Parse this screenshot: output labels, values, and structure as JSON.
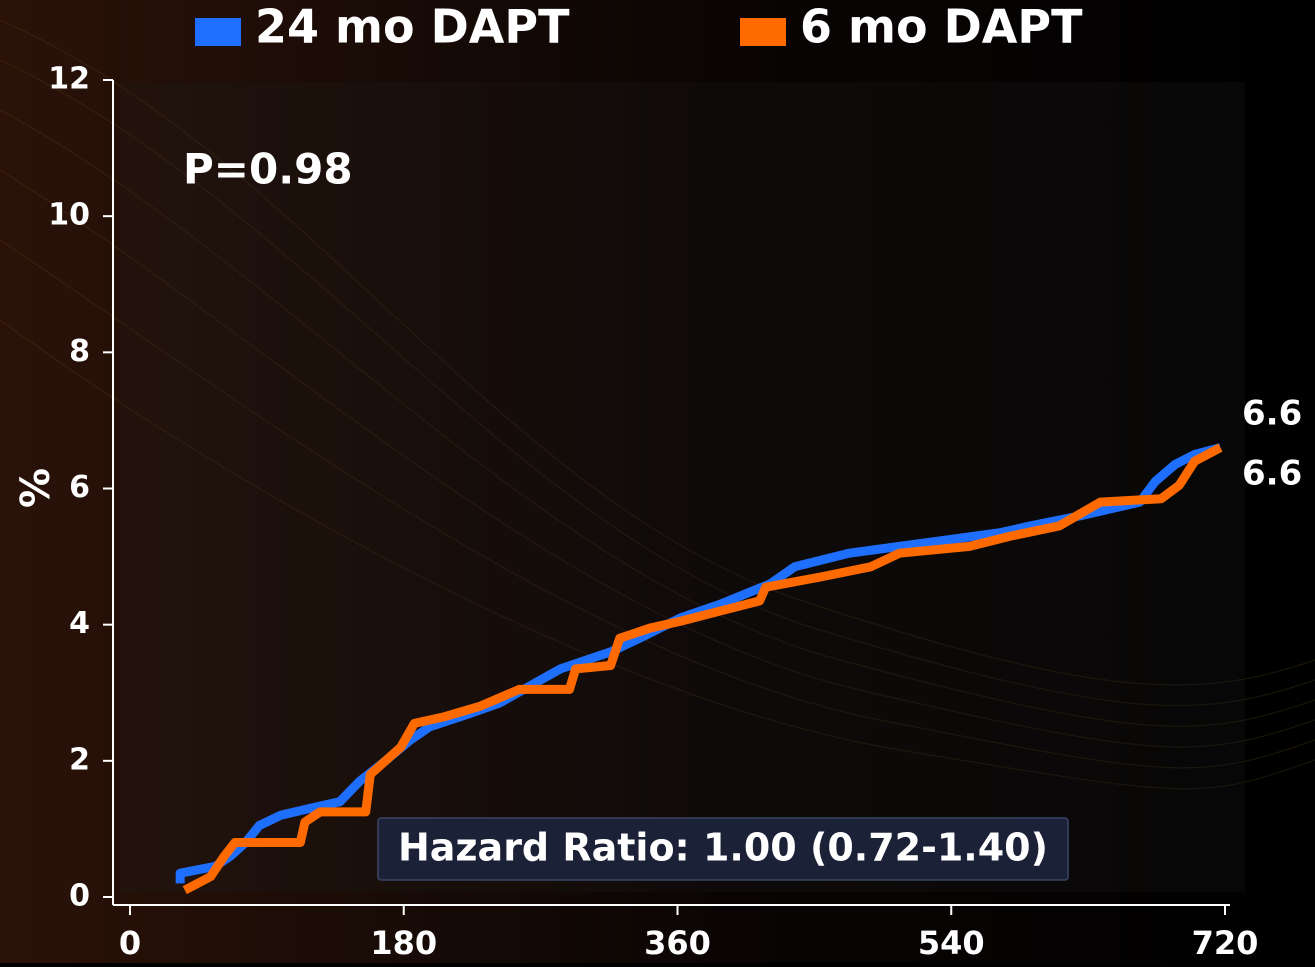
{
  "chart_data": {
    "type": "line",
    "y_label": "%",
    "annotations": [
      "P=0.98",
      "Hazard Ratio: 1.00 (0.72-1.40)"
    ],
    "xlim": [
      0,
      720
    ],
    "xticks": [
      0,
      180,
      360,
      540,
      720
    ],
    "ylim": [
      0,
      12
    ],
    "yticks": [
      0,
      2,
      4,
      6,
      8,
      10,
      12
    ],
    "series": [
      {
        "name": "24 mo DAPT",
        "color": "#1f6fff",
        "end_label": 6.6,
        "x": [
          33,
          33,
          56,
          66,
          76,
          85,
          99,
          118,
          138,
          151,
          168,
          184,
          197,
          224,
          243,
          263,
          283,
          316,
          335,
          362,
          388,
          421,
          437,
          473,
          506,
          539,
          572,
          592,
          625,
          664,
          674,
          687,
          700,
          717
        ],
        "values": [
          0.2,
          0.35,
          0.45,
          0.6,
          0.8,
          1.05,
          1.2,
          1.3,
          1.4,
          1.7,
          2.0,
          2.3,
          2.5,
          2.7,
          2.85,
          3.1,
          3.35,
          3.6,
          3.8,
          4.1,
          4.3,
          4.6,
          4.85,
          5.05,
          5.15,
          5.25,
          5.35,
          5.45,
          5.6,
          5.8,
          6.1,
          6.35,
          6.5,
          6.6
        ]
      },
      {
        "name": "6 mo DAPT",
        "color": "#ff6a00",
        "end_label": 6.6,
        "x": [
          36,
          53,
          62,
          69,
          112,
          115,
          125,
          155,
          158,
          178,
          187,
          207,
          230,
          256,
          289,
          293,
          316,
          322,
          342,
          362,
          388,
          414,
          418,
          454,
          487,
          506,
          552,
          579,
          611,
          638,
          678,
          690,
          700,
          717
        ],
        "values": [
          0.1,
          0.3,
          0.6,
          0.8,
          0.8,
          1.1,
          1.25,
          1.25,
          1.8,
          2.2,
          2.55,
          2.65,
          2.8,
          3.05,
          3.05,
          3.35,
          3.4,
          3.8,
          3.95,
          4.05,
          4.2,
          4.35,
          4.55,
          4.7,
          4.85,
          5.05,
          5.15,
          5.3,
          5.45,
          5.8,
          5.85,
          6.05,
          6.4,
          6.6
        ]
      }
    ]
  }
}
